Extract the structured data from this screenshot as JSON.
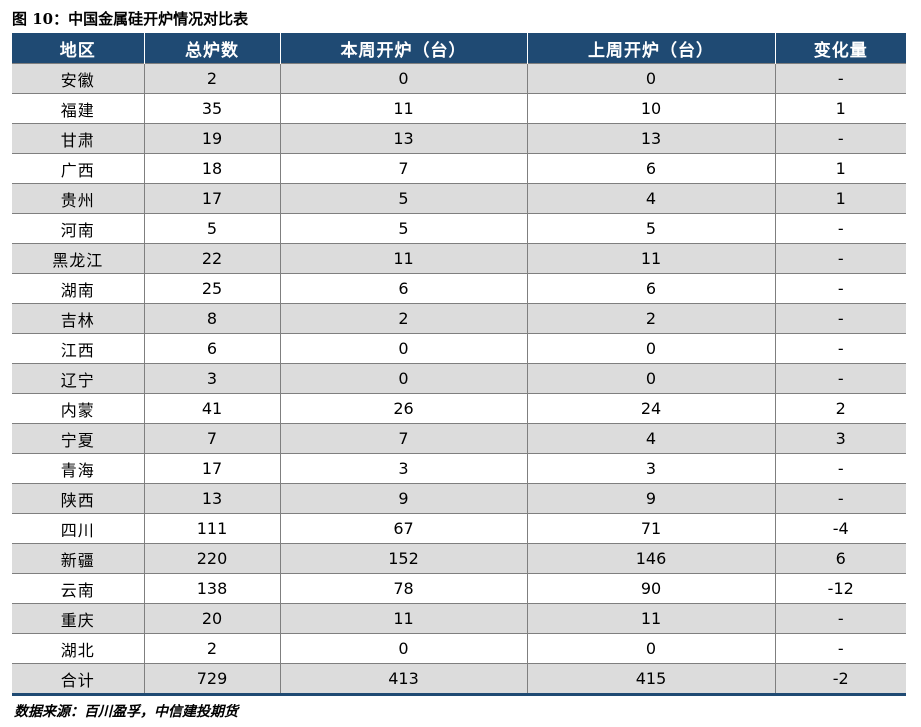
{
  "figure": {
    "title": "图 10：中国金属硅开炉情况对比表",
    "source": "数据来源：百川盈孚，中信建投期货"
  },
  "table": {
    "headers": [
      "地区",
      "总炉数",
      "本周开炉（台）",
      "上周开炉（台）",
      "变化量"
    ],
    "rows": [
      [
        "安徽",
        "2",
        "0",
        "0",
        "-"
      ],
      [
        "福建",
        "35",
        "11",
        "10",
        "1"
      ],
      [
        "甘肃",
        "19",
        "13",
        "13",
        "-"
      ],
      [
        "广西",
        "18",
        "7",
        "6",
        "1"
      ],
      [
        "贵州",
        "17",
        "5",
        "4",
        "1"
      ],
      [
        "河南",
        "5",
        "5",
        "5",
        "-"
      ],
      [
        "黑龙江",
        "22",
        "11",
        "11",
        "-"
      ],
      [
        "湖南",
        "25",
        "6",
        "6",
        "-"
      ],
      [
        "吉林",
        "8",
        "2",
        "2",
        "-"
      ],
      [
        "江西",
        "6",
        "0",
        "0",
        "-"
      ],
      [
        "辽宁",
        "3",
        "0",
        "0",
        "-"
      ],
      [
        "内蒙",
        "41",
        "26",
        "24",
        "2"
      ],
      [
        "宁夏",
        "7",
        "7",
        "4",
        "3"
      ],
      [
        "青海",
        "17",
        "3",
        "3",
        "-"
      ],
      [
        "陕西",
        "13",
        "9",
        "9",
        "-"
      ],
      [
        "四川",
        "111",
        "67",
        "71",
        "-4"
      ],
      [
        "新疆",
        "220",
        "152",
        "146",
        "6"
      ],
      [
        "云南",
        "138",
        "78",
        "90",
        "-12"
      ],
      [
        "重庆",
        "20",
        "11",
        "11",
        "-"
      ],
      [
        "湖北",
        "2",
        "0",
        "0",
        "-"
      ],
      [
        "合计",
        "729",
        "413",
        "415",
        "-2"
      ]
    ]
  },
  "colors": {
    "header_bg": "#1f4a73",
    "header_text": "#ffffff",
    "row_shade": "#dcdcdc"
  }
}
